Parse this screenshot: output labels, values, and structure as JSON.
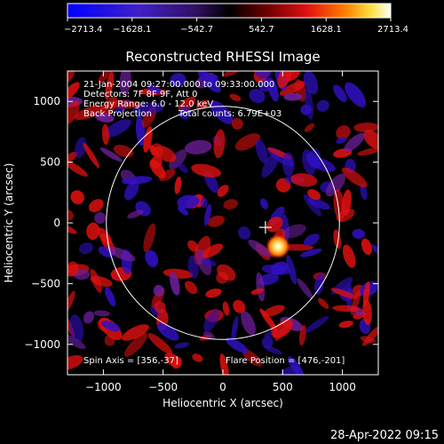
{
  "colorbar": {
    "tick_labels": [
      "-2713.4",
      "-1628.1",
      "-542.7",
      "542.7",
      "1628.1",
      "2713.4"
    ]
  },
  "title": "Reconstructed RHESSI Image",
  "annotations": {
    "time_range": "21-Jan-2004 09:27:00.000 to 09:33:00.000",
    "detectors": "Detectors: 7F 8F 9F, Att 0",
    "energy_range": "Energy Range: 6.0 - 12.0 keV",
    "method": "Back Projection",
    "total_counts": "Total counts: 6.79E+03",
    "spin_axis": "Spin Axis = [356,-37]",
    "flare_position": "Flare Position = [476,-201]"
  },
  "timestamp": "28-Apr-2022 09:15",
  "chart_data": {
    "type": "heatmap",
    "title": "Reconstructed RHESSI Image",
    "xlabel": "Heliocentric X (arcsec)",
    "ylabel": "Heliocentric Y (arcsec)",
    "xlim": [
      -1300,
      1300
    ],
    "ylim": [
      -1250,
      1250
    ],
    "x_ticks": [
      -1000,
      -500,
      0,
      500,
      1000
    ],
    "y_ticks": [
      -1000,
      -500,
      0,
      500,
      1000
    ],
    "x_tick_labels": [
      "−1000",
      "−500",
      "0",
      "500",
      "1000"
    ],
    "y_tick_labels": [
      "−1000",
      "−500",
      "0",
      "500",
      "1000"
    ],
    "value_range": [
      -2713.4,
      2713.4
    ],
    "solar_limb": {
      "center": [
        0,
        0
      ],
      "radius": 975
    },
    "spin_axis": [
      356,
      -37
    ],
    "flare_position": [
      476,
      -201
    ],
    "peak_value": 2713.4,
    "colors": {
      "negative": "#3010c0",
      "zero": "#000000",
      "positive": "#e01010",
      "max": "#ffffff"
    }
  }
}
